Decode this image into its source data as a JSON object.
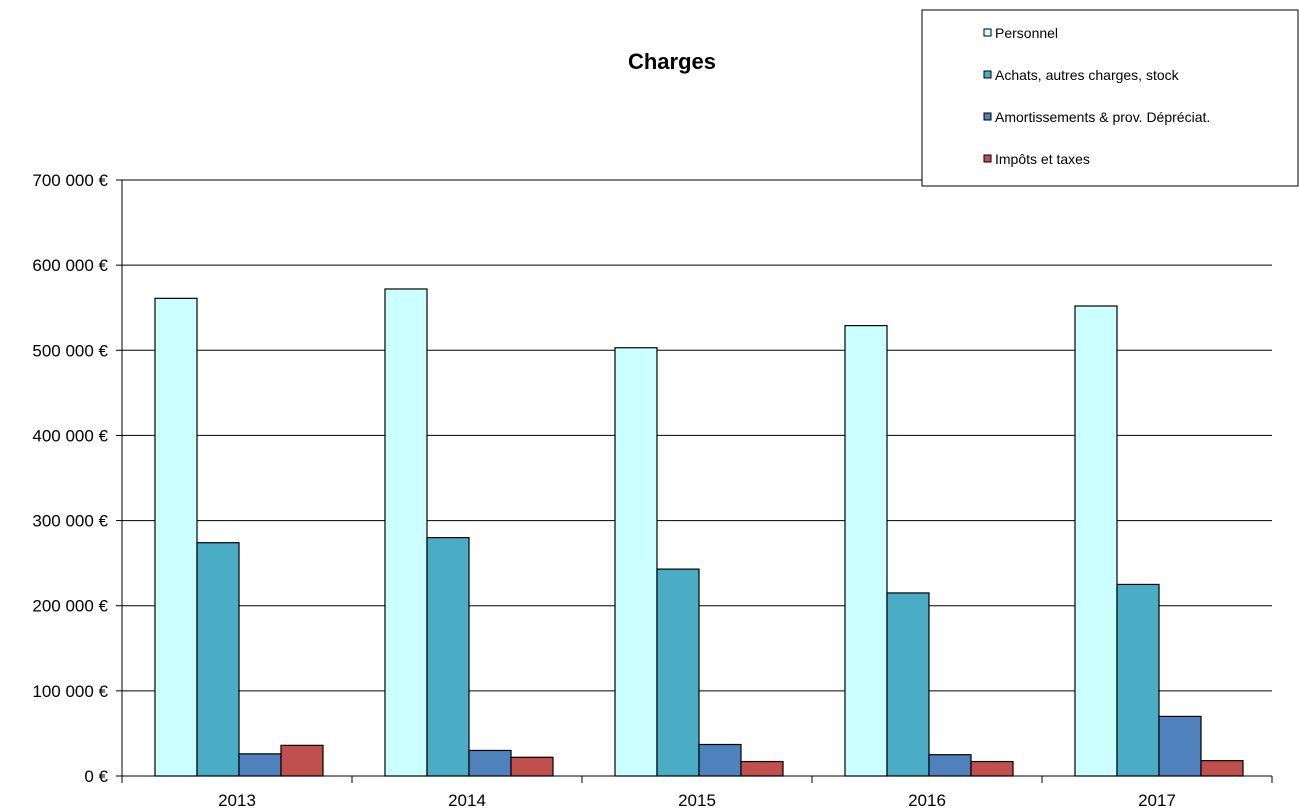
{
  "chart_data": {
    "type": "bar",
    "title": "Charges",
    "categories": [
      "2013",
      "2014",
      "2015",
      "2016",
      "2017"
    ],
    "series": [
      {
        "name": "Personnel",
        "color": "#ccffff",
        "values": [
          561000,
          572000,
          503000,
          529000,
          552000
        ]
      },
      {
        "name": "Achats, autres charges, stock",
        "color": "#4bacc6",
        "values": [
          274000,
          280000,
          243000,
          215000,
          225000
        ]
      },
      {
        "name": "Amortissements & prov. Dépréciat.",
        "color": "#4f81bd",
        "values": [
          26000,
          30000,
          37000,
          25000,
          70000
        ]
      },
      {
        "name": "Impôts et taxes",
        "color": "#c0504d",
        "values": [
          36000,
          22000,
          17000,
          17000,
          18000
        ]
      }
    ],
    "ylim": [
      0,
      700000
    ],
    "yticks": [
      {
        "value": 0,
        "label": "0 €"
      },
      {
        "value": 100000,
        "label": "100 000 €"
      },
      {
        "value": 200000,
        "label": "200 000 €"
      },
      {
        "value": 300000,
        "label": "300 000 €"
      },
      {
        "value": 400000,
        "label": "400 000 €"
      },
      {
        "value": 500000,
        "label": "500 000 €"
      },
      {
        "value": 600000,
        "label": "600 000 €"
      },
      {
        "value": 700000,
        "label": "700 000 €"
      }
    ],
    "grid": true,
    "legend_position": "top-right"
  }
}
